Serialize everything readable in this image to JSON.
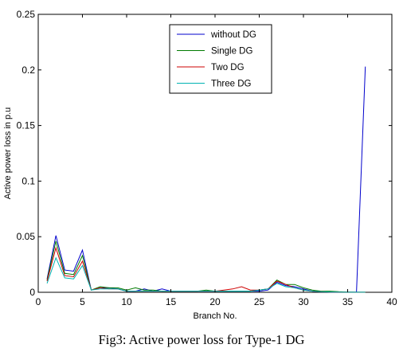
{
  "caption": "Fig3: Active power loss for Type-1 DG",
  "chart_data": {
    "type": "line",
    "xlabel": "Branch No.",
    "ylabel": "Active power loss in p.u",
    "xlim": [
      0,
      40
    ],
    "ylim": [
      0,
      0.25
    ],
    "xticks": [
      0,
      5,
      10,
      15,
      20,
      25,
      30,
      35,
      40
    ],
    "yticks": [
      0,
      0.05,
      0.1,
      0.15,
      0.2,
      0.25
    ],
    "xtick_labels": [
      "0",
      "5",
      "10",
      "15",
      "20",
      "25",
      "30",
      "35",
      "40"
    ],
    "ytick_labels": [
      "0",
      "0.05",
      "0.1",
      "0.15",
      "0.2",
      "0.25"
    ],
    "grid": false,
    "legend_position": "top-center",
    "x": [
      1,
      2,
      3,
      4,
      5,
      6,
      7,
      8,
      9,
      10,
      11,
      12,
      13,
      14,
      15,
      16,
      17,
      18,
      19,
      20,
      21,
      22,
      23,
      24,
      25,
      26,
      27,
      28,
      29,
      30,
      31,
      32,
      33,
      34,
      35,
      36,
      37
    ],
    "series": [
      {
        "name": "without DG",
        "color": "#0000cc",
        "values": [
          0.012,
          0.051,
          0.02,
          0.019,
          0.038,
          0.002,
          0.004,
          0.004,
          0.003,
          0.001,
          0.001,
          0.003,
          0.001,
          0.003,
          0.001,
          0.001,
          0.001,
          0.001,
          0.001,
          0.001,
          0.001,
          0.001,
          0.001,
          0.001,
          0.001,
          0.002,
          0.009,
          0.006,
          0.005,
          0.003,
          0.001,
          0.0005,
          0.0003,
          0.0002,
          0.0001,
          0.0001,
          0.203
        ]
      },
      {
        "name": "Single DG",
        "color": "#007a00",
        "values": [
          0.011,
          0.046,
          0.017,
          0.016,
          0.033,
          0.002,
          0.005,
          0.004,
          0.004,
          0.002,
          0.004,
          0.002,
          0.002,
          0.001,
          0.001,
          0.001,
          0.001,
          0.001,
          0.002,
          0.001,
          0.001,
          0.001,
          0.001,
          0.001,
          0.002,
          0.003,
          0.011,
          0.007,
          0.007,
          0.004,
          0.002,
          0.001,
          0.001,
          0.0005,
          0.0002,
          0.0001,
          0.0001
        ]
      },
      {
        "name": "Two DG",
        "color": "#cc0000",
        "values": [
          0.01,
          0.04,
          0.015,
          0.014,
          0.028,
          0.002,
          0.004,
          0.003,
          0.003,
          0.001,
          0.001,
          0.001,
          0.001,
          0.001,
          0.001,
          0.001,
          0.001,
          0.001,
          0.001,
          0.001,
          0.002,
          0.003,
          0.005,
          0.002,
          0.002,
          0.003,
          0.01,
          0.007,
          0.004,
          0.002,
          0.001,
          0.0005,
          0.0003,
          0.0002,
          0.0001,
          0.0001,
          0.0001
        ]
      },
      {
        "name": "Three DG",
        "color": "#00b3b3",
        "values": [
          0.008,
          0.031,
          0.013,
          0.012,
          0.024,
          0.002,
          0.003,
          0.003,
          0.003,
          0.001,
          0.001,
          0.001,
          0.001,
          0.001,
          0.001,
          0.001,
          0.001,
          0.001,
          0.001,
          0.001,
          0.001,
          0.001,
          0.001,
          0.001,
          0.002,
          0.003,
          0.008,
          0.005,
          0.004,
          0.002,
          0.001,
          0.0005,
          0.0003,
          0.0002,
          0.0001,
          0.0001,
          0.0001
        ]
      }
    ]
  }
}
